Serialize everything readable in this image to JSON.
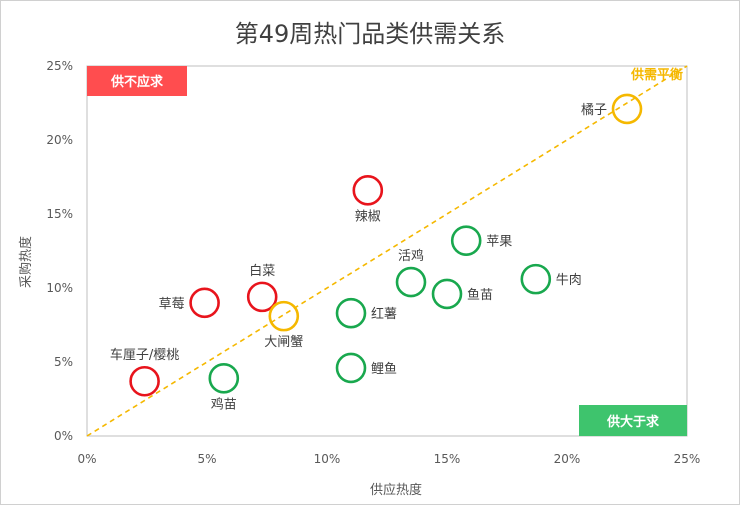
{
  "chart_data": {
    "type": "scatter",
    "title": "第49周热门品类供需关系",
    "xlabel": "供应热度",
    "ylabel": "采购热度",
    "xlim": [
      0,
      0.25
    ],
    "ylim": [
      0,
      0.25
    ],
    "x_ticks": [
      "0%",
      "5%",
      "10%",
      "15%",
      "20%",
      "25%"
    ],
    "y_ticks": [
      "0%",
      "5%",
      "10%",
      "15%",
      "20%",
      "25%"
    ],
    "grid": false,
    "colors": {
      "supply_short": "#e8141c",
      "supply_surplus": "#19a84e",
      "balance": "#f5b800",
      "quad_short_bg": "#ff4d4f",
      "quad_surplus_bg": "#3ec46d"
    },
    "quadrant_labels": {
      "top_left": "供不应求",
      "bottom_right": "供大于求",
      "balance_line": "供需平衡"
    },
    "points": [
      {
        "label": "橘子",
        "x": 0.225,
        "y": 0.221,
        "group": "balance",
        "label_pos": "left"
      },
      {
        "label": "辣椒",
        "x": 0.117,
        "y": 0.166,
        "group": "supply_short",
        "label_pos": "below"
      },
      {
        "label": "苹果",
        "x": 0.158,
        "y": 0.132,
        "group": "supply_surplus",
        "label_pos": "right"
      },
      {
        "label": "活鸡",
        "x": 0.135,
        "y": 0.104,
        "group": "supply_surplus",
        "label_pos": "above"
      },
      {
        "label": "牛肉",
        "x": 0.187,
        "y": 0.106,
        "group": "supply_surplus",
        "label_pos": "right"
      },
      {
        "label": "鱼苗",
        "x": 0.15,
        "y": 0.096,
        "group": "supply_surplus",
        "label_pos": "right"
      },
      {
        "label": "白菜",
        "x": 0.073,
        "y": 0.094,
        "group": "supply_short",
        "label_pos": "above"
      },
      {
        "label": "草莓",
        "x": 0.049,
        "y": 0.09,
        "group": "supply_short",
        "label_pos": "left"
      },
      {
        "label": "红薯",
        "x": 0.11,
        "y": 0.083,
        "group": "supply_surplus",
        "label_pos": "right"
      },
      {
        "label": "大闸蟹",
        "x": 0.082,
        "y": 0.081,
        "group": "balance",
        "label_pos": "below"
      },
      {
        "label": "鲤鱼",
        "x": 0.11,
        "y": 0.046,
        "group": "supply_surplus",
        "label_pos": "right"
      },
      {
        "label": "鸡苗",
        "x": 0.057,
        "y": 0.039,
        "group": "supply_surplus",
        "label_pos": "below"
      },
      {
        "label": "车厘子/樱桃",
        "x": 0.024,
        "y": 0.037,
        "group": "supply_short",
        "label_pos": "above"
      }
    ]
  }
}
